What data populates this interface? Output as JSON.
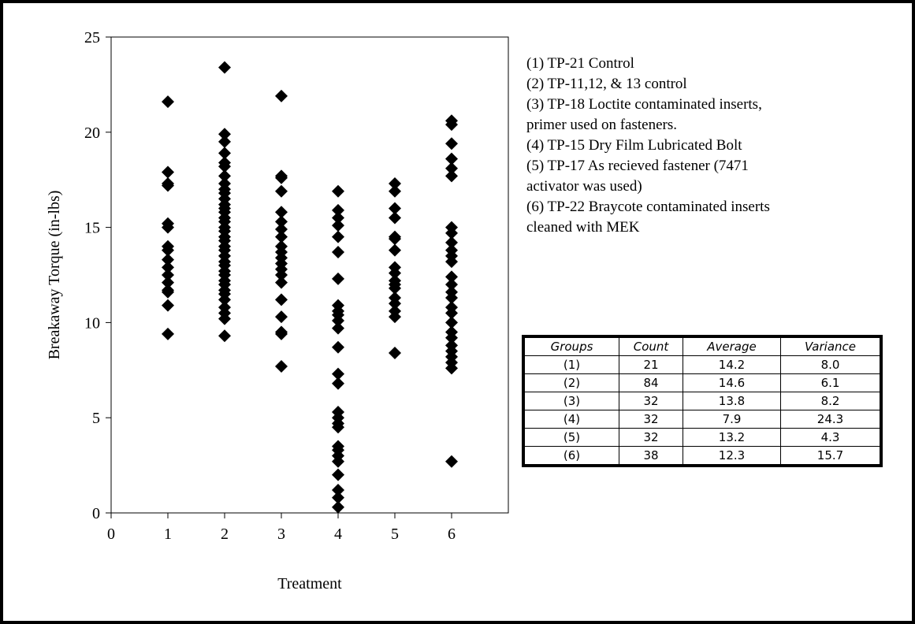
{
  "chart_data": {
    "type": "scatter",
    "xlabel": "Treatment",
    "ylabel": "Breakaway Torque (in-lbs)",
    "xlim": [
      0,
      7
    ],
    "ylim": [
      0,
      25
    ],
    "x_ticks": [
      0,
      1,
      2,
      3,
      4,
      5,
      6
    ],
    "y_ticks": [
      0,
      5,
      10,
      15,
      20,
      25
    ],
    "grid": false,
    "legend": "none",
    "marker": "diamond",
    "marker_color": "#000000",
    "series": [
      {
        "points": [
          [
            1,
            21.6
          ],
          [
            1,
            17.9
          ],
          [
            1,
            17.3
          ],
          [
            1,
            17.2
          ],
          [
            1,
            15.2
          ],
          [
            1,
            15.0
          ],
          [
            1,
            14.0
          ],
          [
            1,
            13.8
          ],
          [
            1,
            13.3
          ],
          [
            1,
            12.9
          ],
          [
            1,
            12.5
          ],
          [
            1,
            12.1
          ],
          [
            1,
            11.7
          ],
          [
            1,
            11.6
          ],
          [
            1,
            10.9
          ],
          [
            1,
            9.4
          ],
          [
            2,
            23.4
          ],
          [
            2,
            19.9
          ],
          [
            2,
            19.5
          ],
          [
            2,
            18.9
          ],
          [
            2,
            18.4
          ],
          [
            2,
            18.2
          ],
          [
            2,
            17.7
          ],
          [
            2,
            17.3
          ],
          [
            2,
            17.0
          ],
          [
            2,
            16.8
          ],
          [
            2,
            16.5
          ],
          [
            2,
            16.2
          ],
          [
            2,
            16.0
          ],
          [
            2,
            15.8
          ],
          [
            2,
            15.5
          ],
          [
            2,
            15.3
          ],
          [
            2,
            15.0
          ],
          [
            2,
            14.8
          ],
          [
            2,
            14.5
          ],
          [
            2,
            14.3
          ],
          [
            2,
            14.0
          ],
          [
            2,
            13.8
          ],
          [
            2,
            13.5
          ],
          [
            2,
            13.2
          ],
          [
            2,
            13.0
          ],
          [
            2,
            12.7
          ],
          [
            2,
            12.5
          ],
          [
            2,
            12.2
          ],
          [
            2,
            12.0
          ],
          [
            2,
            11.7
          ],
          [
            2,
            11.5
          ],
          [
            2,
            11.2
          ],
          [
            2,
            10.8
          ],
          [
            2,
            10.5
          ],
          [
            2,
            10.2
          ],
          [
            2,
            9.3
          ],
          [
            3,
            21.9
          ],
          [
            3,
            17.7
          ],
          [
            3,
            17.6
          ],
          [
            3,
            16.9
          ],
          [
            3,
            15.8
          ],
          [
            3,
            15.3
          ],
          [
            3,
            14.9
          ],
          [
            3,
            14.5
          ],
          [
            3,
            14.0
          ],
          [
            3,
            13.7
          ],
          [
            3,
            13.4
          ],
          [
            3,
            13.1
          ],
          [
            3,
            12.8
          ],
          [
            3,
            12.5
          ],
          [
            3,
            12.1
          ],
          [
            3,
            11.2
          ],
          [
            3,
            10.3
          ],
          [
            3,
            9.5
          ],
          [
            3,
            9.4
          ],
          [
            3,
            7.7
          ],
          [
            4,
            16.9
          ],
          [
            4,
            15.9
          ],
          [
            4,
            15.5
          ],
          [
            4,
            15.1
          ],
          [
            4,
            14.5
          ],
          [
            4,
            13.7
          ],
          [
            4,
            12.3
          ],
          [
            4,
            10.9
          ],
          [
            4,
            10.6
          ],
          [
            4,
            10.4
          ],
          [
            4,
            10.1
          ],
          [
            4,
            9.7
          ],
          [
            4,
            8.7
          ],
          [
            4,
            7.3
          ],
          [
            4,
            6.8
          ],
          [
            4,
            5.3
          ],
          [
            4,
            5.0
          ],
          [
            4,
            4.7
          ],
          [
            4,
            4.5
          ],
          [
            4,
            3.5
          ],
          [
            4,
            3.3
          ],
          [
            4,
            3.0
          ],
          [
            4,
            2.7
          ],
          [
            4,
            2.0
          ],
          [
            4,
            1.2
          ],
          [
            4,
            0.8
          ],
          [
            4,
            0.3
          ],
          [
            5,
            17.3
          ],
          [
            5,
            16.9
          ],
          [
            5,
            16.0
          ],
          [
            5,
            15.5
          ],
          [
            5,
            14.5
          ],
          [
            5,
            14.4
          ],
          [
            5,
            13.8
          ],
          [
            5,
            12.9
          ],
          [
            5,
            12.6
          ],
          [
            5,
            12.2
          ],
          [
            5,
            12.0
          ],
          [
            5,
            11.8
          ],
          [
            5,
            11.3
          ],
          [
            5,
            11.0
          ],
          [
            5,
            10.6
          ],
          [
            5,
            10.3
          ],
          [
            5,
            8.4
          ],
          [
            6,
            20.6
          ],
          [
            6,
            20.4
          ],
          [
            6,
            19.4
          ],
          [
            6,
            18.6
          ],
          [
            6,
            18.1
          ],
          [
            6,
            17.7
          ],
          [
            6,
            15.0
          ],
          [
            6,
            14.7
          ],
          [
            6,
            14.2
          ],
          [
            6,
            13.8
          ],
          [
            6,
            13.5
          ],
          [
            6,
            13.2
          ],
          [
            6,
            12.4
          ],
          [
            6,
            12.0
          ],
          [
            6,
            11.6
          ],
          [
            6,
            11.3
          ],
          [
            6,
            10.8
          ],
          [
            6,
            10.5
          ],
          [
            6,
            10.0
          ],
          [
            6,
            9.5
          ],
          [
            6,
            9.2
          ],
          [
            6,
            8.8
          ],
          [
            6,
            8.5
          ],
          [
            6,
            8.2
          ],
          [
            6,
            7.9
          ],
          [
            6,
            7.6
          ],
          [
            6,
            2.7
          ]
        ]
      }
    ]
  },
  "notes": [
    "(1) TP-21 Control",
    "(2) TP-11,12, & 13 control",
    "(3) TP-18 Loctite contaminated inserts,",
    "primer used on fasteners.",
    "(4) TP-15 Dry Film Lubricated Bolt",
    "(5) TP-17 As recieved fastener (7471",
    "activator was used)",
    "(6) TP-22 Braycote contaminated inserts",
    "cleaned with MEK"
  ],
  "table": {
    "headers": [
      "Groups",
      "Count",
      "Average",
      "Variance"
    ],
    "rows": [
      [
        "(1)",
        "21",
        "14.2",
        "8.0"
      ],
      [
        "(2)",
        "84",
        "14.6",
        "6.1"
      ],
      [
        "(3)",
        "32",
        "13.8",
        "8.2"
      ],
      [
        "(4)",
        "32",
        "7.9",
        "24.3"
      ],
      [
        "(5)",
        "32",
        "13.2",
        "4.3"
      ],
      [
        "(6)",
        "38",
        "12.3",
        "15.7"
      ]
    ]
  }
}
